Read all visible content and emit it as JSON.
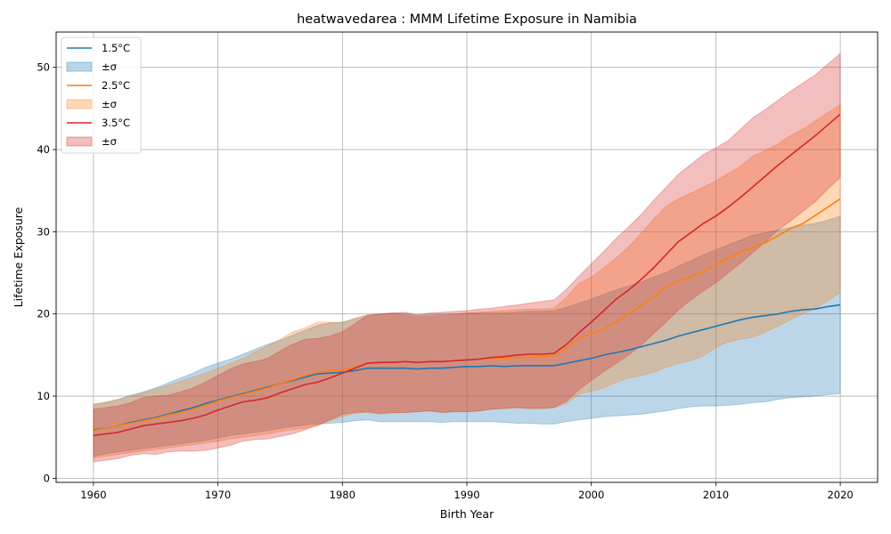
{
  "chart_data": {
    "type": "area",
    "title": "heatwavedarea : MMM Lifetime Exposure in Namibia",
    "xlabel": "Birth Year",
    "ylabel": "Lifetime Exposure",
    "xlim": [
      1957,
      2023
    ],
    "ylim": [
      -0.5,
      54.3
    ],
    "xticks": [
      1960,
      1970,
      1980,
      1990,
      2000,
      2010,
      2020
    ],
    "yticks": [
      0,
      10,
      20,
      30,
      40,
      50
    ],
    "grid": true,
    "legend_position": "top-left",
    "x": [
      1960,
      1961,
      1962,
      1963,
      1964,
      1965,
      1966,
      1967,
      1968,
      1969,
      1970,
      1971,
      1972,
      1973,
      1974,
      1975,
      1976,
      1977,
      1978,
      1979,
      1980,
      1981,
      1982,
      1983,
      1984,
      1985,
      1986,
      1987,
      1988,
      1989,
      1990,
      1991,
      1992,
      1993,
      1994,
      1995,
      1996,
      1997,
      1998,
      1999,
      2000,
      2001,
      2002,
      2003,
      2004,
      2005,
      2006,
      2007,
      2008,
      2009,
      2010,
      2011,
      2012,
      2013,
      2014,
      2015,
      2016,
      2017,
      2018,
      2019,
      2020
    ],
    "series": [
      {
        "name": "1.5°C",
        "band_label": "±σ",
        "color": "#1f77b4",
        "band_color": "#1f77b4",
        "mean": [
          5.9,
          6.1,
          6.4,
          6.8,
          7.1,
          7.4,
          7.8,
          8.2,
          8.6,
          9.1,
          9.5,
          9.9,
          10.3,
          10.7,
          11.1,
          11.5,
          11.9,
          12.3,
          12.7,
          12.8,
          12.9,
          13.1,
          13.4,
          13.4,
          13.4,
          13.4,
          13.3,
          13.4,
          13.4,
          13.5,
          13.6,
          13.6,
          13.7,
          13.6,
          13.7,
          13.7,
          13.7,
          13.7,
          14.0,
          14.3,
          14.6,
          15.0,
          15.3,
          15.6,
          16.0,
          16.4,
          16.8,
          17.3,
          17.7,
          18.1,
          18.5,
          18.9,
          19.3,
          19.6,
          19.8,
          20.0,
          20.3,
          20.5,
          20.6,
          20.9,
          21.1
        ],
        "upper": [
          9.0,
          9.2,
          9.6,
          10.1,
          10.5,
          11.0,
          11.6,
          12.2,
          12.8,
          13.5,
          14.0,
          14.5,
          15.1,
          15.7,
          16.3,
          16.8,
          17.4,
          18.0,
          18.6,
          18.9,
          19.0,
          19.4,
          19.8,
          20.0,
          20.1,
          20.0,
          19.8,
          19.9,
          19.9,
          20.0,
          20.1,
          20.1,
          20.1,
          20.1,
          20.2,
          20.3,
          20.3,
          20.4,
          20.8,
          21.3,
          21.8,
          22.4,
          22.9,
          23.4,
          23.9,
          24.5,
          25.0,
          25.8,
          26.5,
          27.2,
          27.8,
          28.4,
          29.0,
          29.6,
          29.9,
          30.2,
          30.5,
          30.8,
          31.0,
          31.4,
          31.9
        ],
        "lower": [
          2.7,
          3.0,
          3.2,
          3.4,
          3.6,
          3.8,
          4.0,
          4.2,
          4.4,
          4.6,
          4.9,
          5.2,
          5.4,
          5.6,
          5.8,
          6.1,
          6.3,
          6.5,
          6.6,
          6.7,
          6.8,
          7.0,
          7.1,
          6.9,
          6.9,
          6.9,
          6.9,
          6.9,
          6.8,
          6.9,
          6.9,
          6.9,
          6.9,
          6.8,
          6.7,
          6.7,
          6.6,
          6.6,
          6.9,
          7.1,
          7.3,
          7.5,
          7.6,
          7.7,
          7.8,
          8.0,
          8.2,
          8.5,
          8.7,
          8.8,
          8.8,
          8.9,
          9.0,
          9.2,
          9.3,
          9.6,
          9.8,
          9.9,
          10.0,
          10.2,
          10.3
        ]
      },
      {
        "name": "2.5°C",
        "band_label": "±σ",
        "color": "#ff7f0e",
        "band_color": "#ff7f0e",
        "mean": [
          5.8,
          6.1,
          6.4,
          6.7,
          7.0,
          7.3,
          7.7,
          8.0,
          8.4,
          8.9,
          9.4,
          9.8,
          10.2,
          10.6,
          11.0,
          11.5,
          12.0,
          12.5,
          12.9,
          13.1,
          13.2,
          13.5,
          14.0,
          14.1,
          14.1,
          14.2,
          14.1,
          14.2,
          14.2,
          14.3,
          14.4,
          14.5,
          14.6,
          14.6,
          14.7,
          14.7,
          14.8,
          14.9,
          15.9,
          17.0,
          17.6,
          18.2,
          19.0,
          20.0,
          21.0,
          22.1,
          23.3,
          24.0,
          24.5,
          25.2,
          26.0,
          26.8,
          27.5,
          28.1,
          28.7,
          29.5,
          30.4,
          31.0,
          32.0,
          33.0,
          34.0
        ],
        "upper": [
          9.0,
          9.3,
          9.6,
          10.0,
          10.4,
          10.9,
          11.3,
          11.8,
          12.3,
          12.8,
          13.4,
          14.0,
          14.6,
          15.4,
          16.1,
          16.9,
          17.8,
          18.3,
          19.0,
          19.0,
          18.9,
          19.5,
          19.9,
          20.0,
          20.0,
          19.8,
          19.6,
          19.7,
          19.8,
          19.9,
          20.1,
          20.2,
          20.3,
          20.4,
          20.5,
          20.6,
          20.6,
          20.7,
          22.0,
          23.7,
          24.5,
          25.6,
          26.8,
          28.2,
          29.8,
          31.5,
          33.1,
          34.0,
          34.7,
          35.4,
          36.2,
          37.1,
          38.0,
          39.2,
          39.9,
          40.7,
          41.7,
          42.5,
          43.5,
          44.5,
          45.5
        ],
        "lower": [
          2.5,
          2.7,
          2.9,
          3.1,
          3.3,
          3.5,
          3.7,
          3.9,
          4.1,
          4.3,
          4.5,
          4.8,
          5.0,
          5.2,
          5.4,
          5.7,
          5.9,
          6.1,
          6.5,
          7.0,
          7.5,
          7.9,
          8.0,
          7.8,
          7.9,
          8.0,
          8.1,
          8.2,
          8.0,
          8.1,
          8.1,
          8.2,
          8.4,
          8.5,
          8.6,
          8.5,
          8.5,
          8.6,
          9.1,
          10.2,
          10.6,
          11.0,
          11.7,
          12.2,
          12.5,
          12.9,
          13.5,
          14.0,
          14.3,
          14.9,
          15.9,
          16.6,
          16.9,
          17.2,
          17.8,
          18.5,
          19.3,
          20.0,
          20.7,
          21.6,
          22.6
        ]
      },
      {
        "name": "3.5°C",
        "band_label": "±σ",
        "color": "#d62728",
        "band_color": "#d62728",
        "mean": [
          5.2,
          5.4,
          5.6,
          6.0,
          6.4,
          6.6,
          6.8,
          7.0,
          7.3,
          7.7,
          8.3,
          8.8,
          9.3,
          9.5,
          9.8,
          10.4,
          10.9,
          11.4,
          11.7,
          12.2,
          12.8,
          13.4,
          14.0,
          14.1,
          14.1,
          14.2,
          14.1,
          14.2,
          14.2,
          14.3,
          14.4,
          14.5,
          14.7,
          14.8,
          15.0,
          15.1,
          15.1,
          15.2,
          16.3,
          17.7,
          19.0,
          20.4,
          21.8,
          22.9,
          24.2,
          25.6,
          27.2,
          28.8,
          29.9,
          31.0,
          31.9,
          33.0,
          34.2,
          35.5,
          36.8,
          38.1,
          39.3,
          40.5,
          41.7,
          43.0,
          44.3
        ],
        "upper": [
          8.4,
          8.6,
          8.8,
          9.2,
          9.8,
          10.0,
          10.1,
          10.5,
          11.0,
          11.7,
          12.5,
          13.3,
          13.9,
          14.2,
          14.6,
          15.5,
          16.3,
          16.9,
          17.0,
          17.3,
          17.8,
          18.8,
          19.8,
          20.0,
          20.1,
          20.2,
          19.9,
          20.1,
          20.2,
          20.3,
          20.4,
          20.6,
          20.7,
          20.9,
          21.1,
          21.3,
          21.5,
          21.7,
          23.0,
          24.6,
          26.1,
          27.6,
          29.2,
          30.6,
          32.1,
          33.8,
          35.4,
          37.0,
          38.2,
          39.4,
          40.2,
          41.1,
          42.5,
          43.9,
          44.9,
          46.0,
          47.1,
          48.1,
          49.1,
          50.4,
          51.7
        ],
        "lower": [
          2.0,
          2.2,
          2.4,
          2.8,
          3.0,
          2.9,
          3.2,
          3.3,
          3.3,
          3.4,
          3.7,
          4.0,
          4.5,
          4.7,
          4.8,
          5.1,
          5.4,
          5.9,
          6.4,
          7.1,
          7.8,
          8.0,
          8.1,
          7.9,
          8.0,
          8.0,
          8.1,
          8.2,
          8.0,
          8.1,
          8.1,
          8.2,
          8.4,
          8.5,
          8.6,
          8.5,
          8.5,
          8.6,
          9.4,
          10.8,
          11.9,
          13.0,
          14.0,
          15.0,
          16.2,
          17.6,
          19.0,
          20.5,
          21.7,
          22.8,
          23.8,
          25.0,
          26.2,
          27.5,
          28.8,
          30.2,
          31.3,
          32.5,
          33.7,
          35.2,
          36.6
        ]
      }
    ]
  }
}
